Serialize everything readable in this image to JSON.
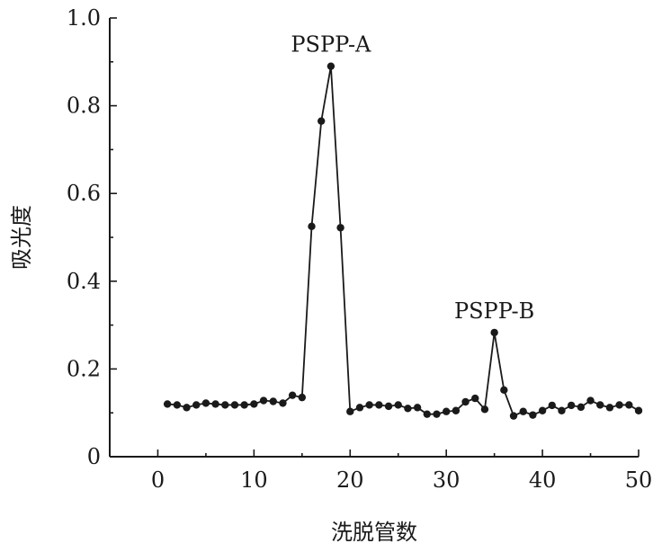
{
  "chart_data": {
    "type": "line",
    "xlabel": "洗脱管数",
    "ylabel": "吸光度",
    "xlim": [
      -5,
      50
    ],
    "ylim": [
      0,
      1.0
    ],
    "x_ticks": [
      0,
      10,
      20,
      30,
      40,
      50
    ],
    "x_tick_labels": [
      "0",
      "10",
      "20",
      "30",
      "40",
      "50"
    ],
    "y_ticks": [
      0,
      0.2,
      0.4,
      0.6,
      0.8,
      1.0
    ],
    "y_tick_labels": [
      "0",
      "0.2",
      "0.4",
      "0.6",
      "0.8",
      "1.0"
    ],
    "grid": false,
    "colors": {
      "series": "#1a1a1a"
    },
    "series": [
      {
        "x": [
          1,
          2,
          3,
          4,
          5,
          6,
          7,
          8,
          9,
          10,
          11,
          12,
          13,
          14,
          15,
          16,
          17,
          18,
          19,
          20,
          21,
          22,
          23,
          24,
          25,
          26,
          27,
          28,
          29,
          30,
          31,
          32,
          33,
          34,
          35,
          36,
          37,
          38,
          39,
          40,
          41,
          42,
          43,
          44,
          45,
          46,
          47,
          48,
          49,
          50
        ],
        "y": [
          0.12,
          0.118,
          0.112,
          0.118,
          0.122,
          0.12,
          0.118,
          0.118,
          0.118,
          0.12,
          0.128,
          0.126,
          0.122,
          0.14,
          0.135,
          0.525,
          0.765,
          0.89,
          0.522,
          0.103,
          0.112,
          0.118,
          0.118,
          0.115,
          0.118,
          0.11,
          0.112,
          0.097,
          0.097,
          0.103,
          0.105,
          0.125,
          0.133,
          0.108,
          0.283,
          0.152,
          0.093,
          0.103,
          0.095,
          0.105,
          0.117,
          0.105,
          0.117,
          0.113,
          0.128,
          0.118,
          0.112,
          0.118,
          0.118,
          0.105
        ]
      }
    ],
    "annotations": [
      {
        "text": "PSPP-A",
        "x": 18,
        "y": 0.89
      },
      {
        "text": "PSPP-B",
        "x": 35,
        "y": 0.283
      }
    ]
  }
}
